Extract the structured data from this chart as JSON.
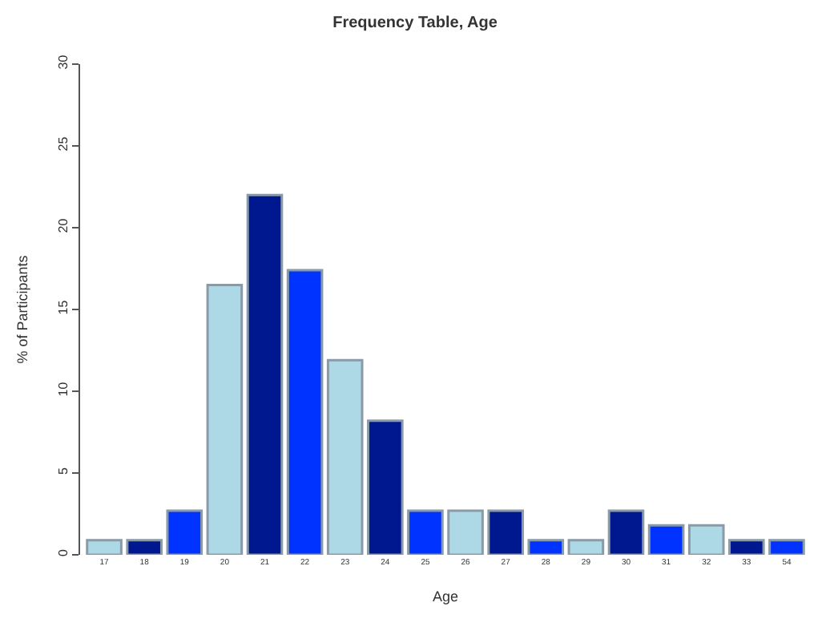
{
  "chart_data": {
    "type": "bar",
    "title": "Frequency Table, Age",
    "xlabel": "Age",
    "ylabel": "% of Participants",
    "categories": [
      "17",
      "18",
      "19",
      "20",
      "21",
      "22",
      "23",
      "24",
      "25",
      "26",
      "27",
      "28",
      "29",
      "30",
      "31",
      "32",
      "33",
      "54"
    ],
    "values": [
      0.9,
      0.9,
      2.7,
      16.5,
      22.0,
      17.4,
      11.9,
      8.2,
      2.7,
      2.7,
      2.7,
      0.9,
      0.9,
      2.7,
      1.8,
      1.8,
      0.9,
      0.9
    ],
    "colors": [
      "#add8e6",
      "#00188f",
      "#0033ff",
      "#add8e6",
      "#00188f",
      "#0033ff",
      "#add8e6",
      "#00188f",
      "#0033ff",
      "#add8e6",
      "#00188f",
      "#0033ff",
      "#add8e6",
      "#00188f",
      "#0033ff",
      "#add8e6",
      "#00188f",
      "#0033ff"
    ],
    "ylim": [
      0,
      30
    ],
    "yticks": [
      0,
      5,
      10,
      15,
      20,
      25,
      30
    ]
  }
}
